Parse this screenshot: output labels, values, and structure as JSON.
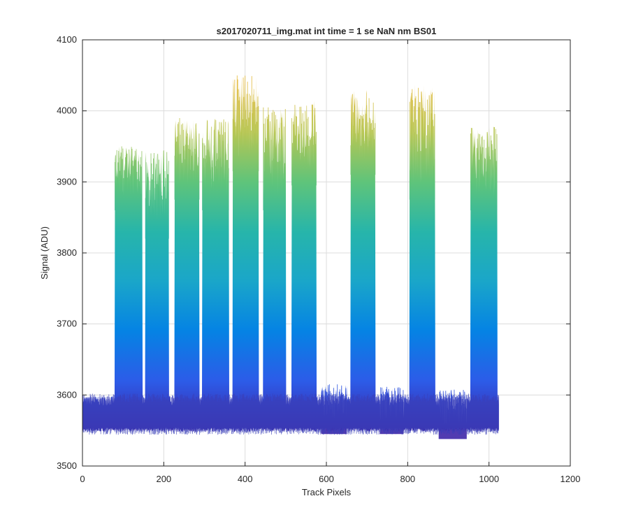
{
  "chart_data": {
    "type": "area",
    "title": "s2017020711_img.mat int time = 1 se  NaN nm BS01",
    "xlabel": "Track Pixels",
    "ylabel": "Signal (ADU)",
    "xlim": [
      0,
      1200
    ],
    "ylim": [
      3500,
      4100
    ],
    "xticks": [
      0,
      200,
      400,
      600,
      800,
      1000,
      1200
    ],
    "yticks": [
      3500,
      3600,
      3700,
      3800,
      3900,
      4000,
      4100
    ],
    "grid": true,
    "data_x_extent": [
      0,
      1024
    ],
    "baseline": {
      "low": 3550,
      "high": 3595
    },
    "peaks": [
      {
        "start": 80,
        "end": 147,
        "level": 3920,
        "max": 3950
      },
      {
        "start": 155,
        "end": 212,
        "level": 3880,
        "max": 3945
      },
      {
        "start": 227,
        "end": 287,
        "level": 3935,
        "max": 3990
      },
      {
        "start": 295,
        "end": 360,
        "level": 3920,
        "max": 3990
      },
      {
        "start": 370,
        "end": 433,
        "level": 3975,
        "max": 4050
      },
      {
        "start": 445,
        "end": 500,
        "level": 3920,
        "max": 4005
      },
      {
        "start": 515,
        "end": 575,
        "level": 3955,
        "max": 4015
      },
      {
        "start": 588,
        "end": 650,
        "level": 3605,
        "max": 3615
      },
      {
        "start": 660,
        "end": 720,
        "level": 3970,
        "max": 4030
      },
      {
        "start": 732,
        "end": 790,
        "level": 3605,
        "max": 3612
      },
      {
        "start": 805,
        "end": 867,
        "level": 3935,
        "max": 4040
      },
      {
        "start": 877,
        "end": 945,
        "level": 3598,
        "max": 3608
      },
      {
        "start": 955,
        "end": 1020,
        "level": 3920,
        "max": 3978
      }
    ],
    "colors": {
      "colormap": [
        "#3e26a8",
        "#2c5ce8",
        "#0583e4",
        "#1aa6c9",
        "#27b5aa",
        "#5fc47a",
        "#b7c653",
        "#e5ba3b"
      ],
      "grid": "#dcdcdc",
      "axis": "#262626"
    }
  }
}
